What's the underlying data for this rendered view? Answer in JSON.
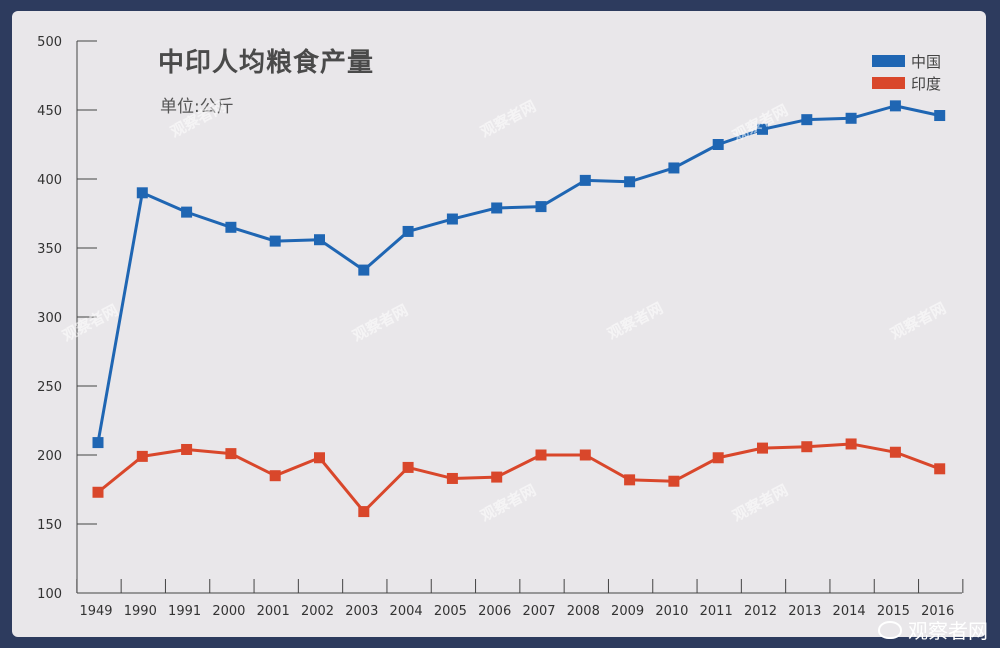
{
  "title": "中印人均粮食产量",
  "subtitle": "单位:公斤",
  "watermark_text": "观察者网",
  "source_label": "观察者网",
  "colors": {
    "china": "#1f66b3",
    "india": "#d9472b",
    "background": "#e9e7ea",
    "frame": "#2d3b5e"
  },
  "chart_data": {
    "type": "line",
    "title": "中印人均粮食产量",
    "subtitle": "单位:公斤",
    "xlabel": "",
    "ylabel": "",
    "categories": [
      "1949",
      "1990",
      "1991",
      "2000",
      "2001",
      "2002",
      "2003",
      "2004",
      "2005",
      "2006",
      "2007",
      "2008",
      "2009",
      "2010",
      "2011",
      "2012",
      "2013",
      "2014",
      "2015",
      "2016"
    ],
    "ylim": [
      100,
      500
    ],
    "yticks": [
      100,
      150,
      200,
      250,
      300,
      350,
      400,
      450,
      500
    ],
    "grid": false,
    "legend_position": "top-right",
    "series": [
      {
        "name": "中国",
        "color": "#1f66b3",
        "values": [
          209,
          390,
          376,
          365,
          355,
          356,
          334,
          362,
          371,
          379,
          380,
          399,
          398,
          408,
          425,
          436,
          443,
          444,
          453,
          446
        ]
      },
      {
        "name": "印度",
        "color": "#d9472b",
        "values": [
          173,
          199,
          204,
          201,
          185,
          198,
          159,
          191,
          183,
          184,
          200,
          200,
          182,
          181,
          198,
          205,
          206,
          208,
          202,
          190
        ]
      }
    ]
  }
}
